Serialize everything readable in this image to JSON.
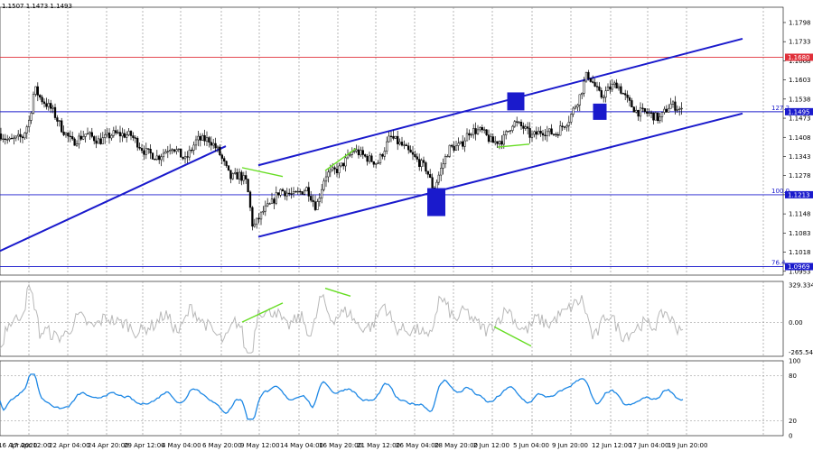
{
  "chart_data": {
    "type": "candlestick",
    "header_ohlc": "1.1507 1.1473 1.1493",
    "main_panel": {
      "y_ticks": [
        "1.1798",
        "1.1733",
        "1.1668",
        "1.1603",
        "1.1538",
        "1.1473",
        "1.1408",
        "1.1343",
        "1.1278",
        "1.1213",
        "1.1148",
        "1.1083",
        "1.1018",
        "1.0953"
      ],
      "ylim": [
        1.094,
        1.185
      ],
      "horizontal_levels": [
        {
          "value": 1.168,
          "tag": "1.1680",
          "tag_color": "#e0303a",
          "line_color": "#e0303a",
          "label": ""
        },
        {
          "value": 1.1495,
          "tag": "1.1495",
          "tag_color": "#1a1acc",
          "line_color": "#1a1acc",
          "label": "127.2"
        },
        {
          "value": 1.1213,
          "tag": "1.1213",
          "tag_color": "#1a1acc",
          "line_color": "#1a1acc",
          "label": "100.0"
        },
        {
          "value": 1.0969,
          "tag": "1.0969",
          "tag_color": "#1a1acc",
          "line_color": "#1a1acc",
          "label": "76.4"
        }
      ],
      "trend_lines": [
        {
          "from": [
            0,
            1.1022
          ],
          "to": [
            250,
            1.1378
          ]
        },
        {
          "from": [
            286,
            1.107
          ],
          "to": [
            822,
            1.1489
          ]
        },
        {
          "from": [
            286,
            1.1313
          ],
          "to": [
            822,
            1.1743
          ]
        }
      ],
      "divergence_lines": [
        {
          "from": [
            268,
            1.1305
          ],
          "to": [
            313,
            1.1275
          ]
        },
        {
          "from": [
            360,
            1.1295
          ],
          "to": [
            394,
            1.137
          ]
        },
        {
          "from": [
            551,
            1.1375
          ],
          "to": [
            586,
            1.1385
          ]
        }
      ],
      "markers": [
        {
          "x": 483,
          "y": 1.1188,
          "kind": "square"
        },
        {
          "x": 571,
          "y": 1.153,
          "kind": "square"
        },
        {
          "x": 664,
          "y": 1.1495,
          "kind": "square"
        }
      ]
    },
    "cci_panel": {
      "y_ticks": [
        "329.3341",
        "0.00",
        "-265.544"
      ],
      "ylim": [
        -300,
        360
      ]
    },
    "rsi_panel": {
      "y_ticks": [
        "100",
        "80",
        "20",
        "0"
      ],
      "ylim": [
        0,
        100
      ]
    },
    "x_ticks": [
      "16 Apr 2020",
      "17 Apr 12:00",
      "22 Apr 04:00",
      "24 Apr 20:00",
      "29 Apr 12:00",
      "4 May 04:00",
      "6 May 20:00",
      "9 May 12:00",
      "14 May 04:00",
      "16 May 20:00",
      "21 May 12:00",
      "26 May 04:00",
      "28 May 20:00",
      "2 Jun 12:00",
      "5 Jun 04:00",
      "9 Jun 20:00",
      "12 Jun 12:00",
      "17 Jun 04:00",
      "19 Jun 20:00"
    ],
    "colors": {
      "candle": "#000000",
      "channel": "#1a1acc",
      "divergence": "#66dd22",
      "cci_line": "#b8b8b8",
      "rsi_line": "#1e88e5",
      "grid": "#888888"
    }
  }
}
